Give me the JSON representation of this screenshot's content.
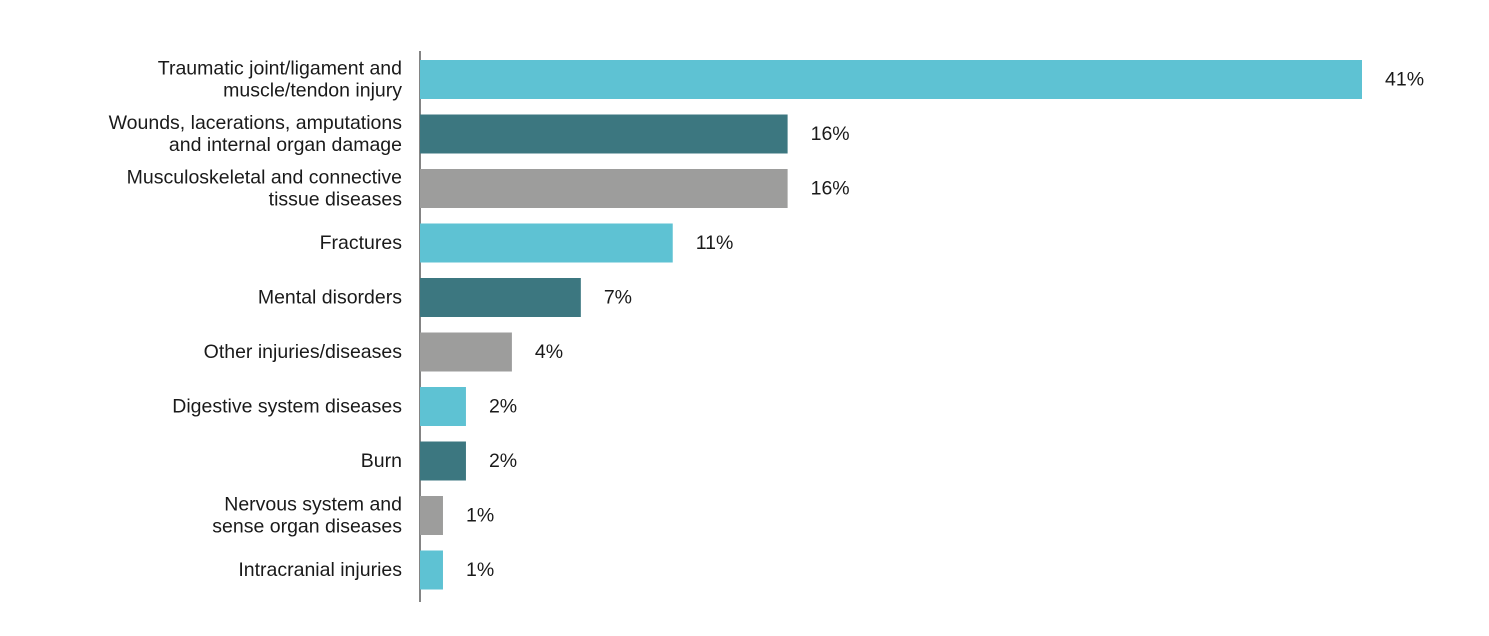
{
  "chart_data": {
    "type": "bar",
    "orientation": "horizontal",
    "title": "",
    "xlabel": "",
    "ylabel": "",
    "grid": false,
    "legend": "none",
    "xlim": [
      0,
      41
    ],
    "categories": [
      [
        "Traumatic joint/ligament and",
        "muscle/tendon injury"
      ],
      [
        "Wounds, lacerations, amputations",
        "and internal organ damage"
      ],
      [
        "Musculoskeletal and connective",
        "tissue diseases"
      ],
      [
        "Fractures"
      ],
      [
        "Mental disorders"
      ],
      [
        "Other injuries/diseases"
      ],
      [
        "Digestive system diseases"
      ],
      [
        "Burn"
      ],
      [
        "Nervous system and",
        "sense organ diseases"
      ],
      [
        "Intracranial injuries"
      ]
    ],
    "values": [
      41,
      16,
      16,
      11,
      7,
      4,
      2,
      2,
      1,
      1
    ],
    "value_labels": [
      "41%",
      "16%",
      "16%",
      "11%",
      "7%",
      "4%",
      "2%",
      "2%",
      "1%",
      "1%"
    ],
    "bar_colors": [
      "#5ec2d3",
      "#3c7780",
      "#9d9d9c",
      "#5ec2d3",
      "#3c7780",
      "#9d9d9c",
      "#5ec2d3",
      "#3c7780",
      "#9d9d9c",
      "#5ec2d3"
    ]
  }
}
